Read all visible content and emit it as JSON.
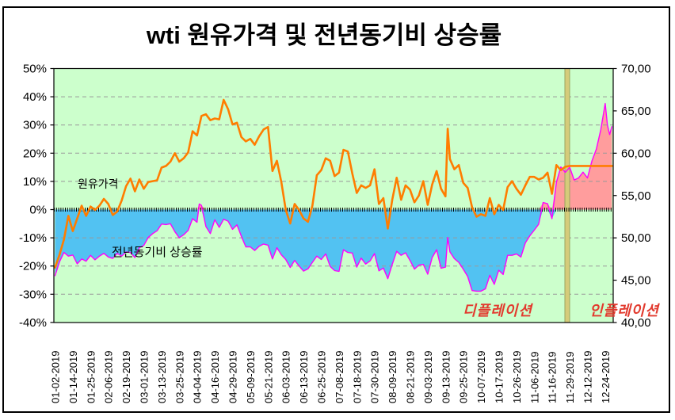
{
  "title": "wti 원유가격 및 전년동기비 상승률",
  "chart_data": {
    "type": "line",
    "dual_axis": true,
    "plot_background": "#CCFFCC",
    "gridline_color": "#999999",
    "x_labels": [
      "01-02-2019",
      "01-14-2019",
      "01-25-2019",
      "02-06-2019",
      "02-19-2019",
      "03-01-2019",
      "03-13-2019",
      "03-25-2019",
      "04-04-2019",
      "04-16-2019",
      "04-29-2019",
      "05-09-2019",
      "05-21-2019",
      "06-03-2019",
      "06-13-2019",
      "06-25-2019",
      "07-08-2019",
      "07-18-2019",
      "07-30-2019",
      "08-09-2019",
      "08-21-2019",
      "09-03-2019",
      "09-13-2019",
      "09-25-2019",
      "10-07-2019",
      "10-17-2019",
      "10-26-2019",
      "11-06-2019",
      "11-16-2019",
      "11-29-2019",
      "12-12-2019",
      "12-24-2019"
    ],
    "points_per_label": 8,
    "left_axis": {
      "min": -40,
      "max": 50,
      "step": 10,
      "unit": "%",
      "tick_labels": [
        "50%",
        "40%",
        "30%",
        "20%",
        "10%",
        "0%",
        "-10%",
        "-20%",
        "-30%",
        "-40%"
      ],
      "tick_values": [
        50,
        40,
        30,
        20,
        10,
        0,
        -10,
        -20,
        -30,
        -40
      ],
      "gridline_values": [
        40,
        30,
        20,
        10,
        -10,
        -20,
        -30
      ]
    },
    "right_axis": {
      "min": 40,
      "max": 70,
      "step": 5,
      "tick_labels": [
        "70,00",
        "65,00",
        "60,00",
        "55,00",
        "50,00",
        "45,00",
        "40,00"
      ],
      "tick_values": [
        70,
        65,
        60,
        55,
        50,
        45,
        40
      ]
    },
    "series": [
      {
        "name": "원유가격",
        "axis": "right",
        "color": "#FF7D00",
        "width": 2.6,
        "points": [
          [
            0,
            46.5
          ],
          [
            2,
            48.0
          ],
          [
            4,
            49.8
          ],
          [
            6,
            52.6
          ],
          [
            8,
            50.8
          ],
          [
            10,
            52.3
          ],
          [
            12,
            53.8
          ],
          [
            14,
            52.6
          ],
          [
            16,
            53.7
          ],
          [
            18,
            53.3
          ],
          [
            20,
            53.8
          ],
          [
            22,
            54.6
          ],
          [
            24,
            54.0
          ],
          [
            26,
            52.7
          ],
          [
            28,
            53.1
          ],
          [
            30,
            54.4
          ],
          [
            32,
            56.1
          ],
          [
            34,
            57.0
          ],
          [
            36,
            55.5
          ],
          [
            38,
            56.9
          ],
          [
            40,
            55.8
          ],
          [
            42,
            56.6
          ],
          [
            44,
            56.7
          ],
          [
            46,
            56.8
          ],
          [
            48,
            58.3
          ],
          [
            50,
            58.5
          ],
          [
            52,
            59.0
          ],
          [
            54,
            60.0
          ],
          [
            56,
            59.0
          ],
          [
            58,
            59.4
          ],
          [
            60,
            60.1
          ],
          [
            62,
            62.6
          ],
          [
            64,
            62.1
          ],
          [
            66,
            64.4
          ],
          [
            68,
            64.6
          ],
          [
            70,
            63.9
          ],
          [
            72,
            64.1
          ],
          [
            74,
            64.0
          ],
          [
            76,
            66.3
          ],
          [
            78,
            65.2
          ],
          [
            80,
            63.4
          ],
          [
            82,
            63.6
          ],
          [
            84,
            61.9
          ],
          [
            86,
            61.4
          ],
          [
            88,
            61.7
          ],
          [
            90,
            61.0
          ],
          [
            92,
            62.0
          ],
          [
            94,
            62.8
          ],
          [
            96,
            63.1
          ],
          [
            98,
            57.9
          ],
          [
            100,
            59.1
          ],
          [
            102,
            56.6
          ],
          [
            104,
            53.3
          ],
          [
            106,
            51.7
          ],
          [
            108,
            54.0
          ],
          [
            110,
            53.3
          ],
          [
            112,
            52.3
          ],
          [
            114,
            51.9
          ],
          [
            116,
            53.8
          ],
          [
            118,
            57.4
          ],
          [
            120,
            58.0
          ],
          [
            122,
            59.4
          ],
          [
            124,
            59.1
          ],
          [
            126,
            57.3
          ],
          [
            128,
            57.7
          ],
          [
            130,
            60.4
          ],
          [
            132,
            60.2
          ],
          [
            134,
            57.6
          ],
          [
            136,
            55.3
          ],
          [
            138,
            56.2
          ],
          [
            140,
            55.9
          ],
          [
            142,
            56.2
          ],
          [
            144,
            58.1
          ],
          [
            146,
            54.0
          ],
          [
            148,
            54.7
          ],
          [
            150,
            51.1
          ],
          [
            152,
            54.5
          ],
          [
            154,
            57.1
          ],
          [
            156,
            54.5
          ],
          [
            158,
            56.2
          ],
          [
            160,
            55.7
          ],
          [
            162,
            54.2
          ],
          [
            164,
            55.0
          ],
          [
            166,
            56.7
          ],
          [
            168,
            53.9
          ],
          [
            170,
            56.3
          ],
          [
            172,
            57.9
          ],
          [
            174,
            55.8
          ],
          [
            176,
            54.9
          ],
          [
            177,
            62.9
          ],
          [
            178,
            59.3
          ],
          [
            180,
            58.1
          ],
          [
            182,
            58.6
          ],
          [
            184,
            56.5
          ],
          [
            186,
            55.9
          ],
          [
            188,
            53.6
          ],
          [
            190,
            52.5
          ],
          [
            192,
            52.8
          ],
          [
            194,
            52.6
          ],
          [
            196,
            54.7
          ],
          [
            198,
            52.8
          ],
          [
            200,
            53.9
          ],
          [
            202,
            53.3
          ],
          [
            204,
            56.0
          ],
          [
            206,
            56.7
          ],
          [
            208,
            55.8
          ],
          [
            210,
            55.1
          ],
          [
            212,
            56.2
          ],
          [
            214,
            57.2
          ],
          [
            216,
            57.2
          ],
          [
            218,
            56.9
          ],
          [
            220,
            57.1
          ],
          [
            222,
            57.7
          ],
          [
            224,
            55.2
          ],
          [
            226,
            58.6
          ],
          [
            228,
            58.0
          ],
          [
            230,
            58.4
          ],
          [
            232,
            58.5
          ],
          [
            251,
            58.5
          ]
        ]
      },
      {
        "name": "전년동기비 상승률",
        "axis": "left",
        "unit": "%",
        "color": "#FF00FF",
        "width": 1.4,
        "fill_negative": "#52C2F2",
        "fill_positive": "#FF9D9D",
        "points": [
          [
            0,
            -23.4
          ],
          [
            2,
            -18.5
          ],
          [
            4,
            -15.2
          ],
          [
            6,
            -16.5
          ],
          [
            8,
            -16.1
          ],
          [
            10,
            -19.2
          ],
          [
            12,
            -17.5
          ],
          [
            14,
            -18.3
          ],
          [
            16,
            -16.2
          ],
          [
            18,
            -17.8
          ],
          [
            20,
            -16.5
          ],
          [
            22,
            -15.5
          ],
          [
            24,
            -16.8
          ],
          [
            26,
            -17.3
          ],
          [
            28,
            -15.5
          ],
          [
            30,
            -16.5
          ],
          [
            32,
            -15.0
          ],
          [
            34,
            -15.2
          ],
          [
            36,
            -17.0
          ],
          [
            38,
            -13.5
          ],
          [
            40,
            -12.7
          ],
          [
            42,
            -9.9
          ],
          [
            44,
            -8.5
          ],
          [
            46,
            -7.5
          ],
          [
            48,
            -5.1
          ],
          [
            50,
            -5.3
          ],
          [
            52,
            -5.0
          ],
          [
            54,
            -7.8
          ],
          [
            56,
            -10.0
          ],
          [
            58,
            -8.9
          ],
          [
            60,
            -7.4
          ],
          [
            62,
            -3.2
          ],
          [
            64,
            -4.5
          ],
          [
            65,
            2.0
          ],
          [
            66,
            1.5
          ],
          [
            68,
            -6.0
          ],
          [
            70,
            -8.5
          ],
          [
            72,
            -3.6
          ],
          [
            74,
            -6.3
          ],
          [
            76,
            -3.4
          ],
          [
            78,
            -4.1
          ],
          [
            80,
            -7.0
          ],
          [
            82,
            -5.4
          ],
          [
            84,
            -9.5
          ],
          [
            86,
            -13.2
          ],
          [
            88,
            -13.2
          ],
          [
            90,
            -14.5
          ],
          [
            92,
            -13.0
          ],
          [
            94,
            -12.2
          ],
          [
            96,
            -12.6
          ],
          [
            98,
            -17.5
          ],
          [
            100,
            -13.5
          ],
          [
            102,
            -16.0
          ],
          [
            104,
            -17.7
          ],
          [
            106,
            -20.5
          ],
          [
            108,
            -18.0
          ],
          [
            110,
            -20.0
          ],
          [
            112,
            -21.8
          ],
          [
            114,
            -21.0
          ],
          [
            116,
            -18.7
          ],
          [
            118,
            -16.5
          ],
          [
            120,
            -17.7
          ],
          [
            122,
            -15.7
          ],
          [
            124,
            -20.1
          ],
          [
            126,
            -21.6
          ],
          [
            128,
            -21.9
          ],
          [
            130,
            -14.2
          ],
          [
            132,
            -15.2
          ],
          [
            134,
            -15.4
          ],
          [
            136,
            -20.4
          ],
          [
            138,
            -17.2
          ],
          [
            140,
            -19.3
          ],
          [
            142,
            -18.2
          ],
          [
            144,
            -15.6
          ],
          [
            146,
            -21.7
          ],
          [
            148,
            -20.7
          ],
          [
            150,
            -24.5
          ],
          [
            152,
            -19.4
          ],
          [
            154,
            -14.8
          ],
          [
            156,
            -16.2
          ],
          [
            158,
            -15.3
          ],
          [
            160,
            -18.0
          ],
          [
            162,
            -21.1
          ],
          [
            164,
            -19.7
          ],
          [
            166,
            -19.4
          ],
          [
            168,
            -22.9
          ],
          [
            170,
            -17.0
          ],
          [
            172,
            -14.2
          ],
          [
            174,
            -20.8
          ],
          [
            176,
            -20.4
          ],
          [
            177,
            -9.9
          ],
          [
            178,
            -15.0
          ],
          [
            180,
            -17.4
          ],
          [
            182,
            -18.7
          ],
          [
            184,
            -21.1
          ],
          [
            186,
            -23.7
          ],
          [
            188,
            -28.7
          ],
          [
            190,
            -28.9
          ],
          [
            192,
            -28.9
          ],
          [
            194,
            -28.1
          ],
          [
            196,
            -23.3
          ],
          [
            198,
            -26.5
          ],
          [
            200,
            -21.5
          ],
          [
            202,
            -23.0
          ],
          [
            204,
            -16.2
          ],
          [
            206,
            -16.2
          ],
          [
            208,
            -15.7
          ],
          [
            210,
            -16.8
          ],
          [
            212,
            -11.8
          ],
          [
            214,
            -9.3
          ],
          [
            216,
            -7.3
          ],
          [
            218,
            -5.2
          ],
          [
            220,
            2.5
          ],
          [
            222,
            2.1
          ],
          [
            224,
            -3.2
          ],
          [
            226,
            9.7
          ],
          [
            228,
            15.1
          ],
          [
            230,
            13.2
          ],
          [
            232,
            15.0
          ],
          [
            234,
            10.5
          ],
          [
            236,
            11.2
          ],
          [
            238,
            13.3
          ],
          [
            240,
            11.2
          ],
          [
            242,
            17.2
          ],
          [
            244,
            21.4
          ],
          [
            246,
            28.3
          ],
          [
            248,
            37.6
          ],
          [
            249,
            30.0
          ],
          [
            250,
            26.6
          ],
          [
            251,
            29.4
          ]
        ]
      }
    ],
    "annotations": {
      "price_series_label": "원유가격",
      "yoy_series_label": "전년동기비 상승률",
      "deflation": "디플레이션",
      "inflation": "인플레이션",
      "event_band_at_label": "11-29-2019",
      "event_band_color": "#D5CB7A",
      "event_band_border": "#9AA45E"
    }
  }
}
